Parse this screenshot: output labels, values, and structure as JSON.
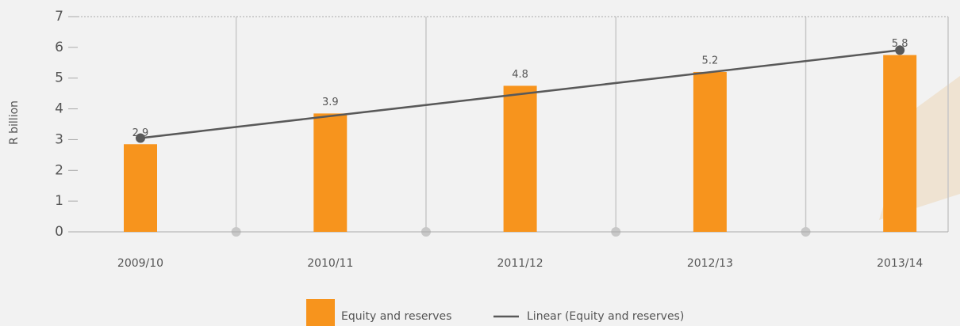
{
  "chart_data": {
    "type": "bar",
    "y_axis_label": "R billion",
    "categories": [
      "2009/10",
      "2010/11",
      "2011/12",
      "2012/13",
      "2013/14"
    ],
    "series": [
      {
        "name": "Equity and reserves",
        "color": "#f7941d",
        "values": [
          2.85,
          3.85,
          4.75,
          5.2,
          5.75
        ],
        "value_labels": [
          "2.9",
          "3.9",
          "4.8",
          "5.2",
          "5.8"
        ],
        "trendline": "linear",
        "trendline_name": "Linear (Equity and reserves)",
        "trendline_color": "#595959"
      }
    ],
    "ylim": [
      0,
      7
    ],
    "yticks": [
      0,
      1,
      2,
      3,
      4,
      5,
      6,
      7
    ]
  }
}
